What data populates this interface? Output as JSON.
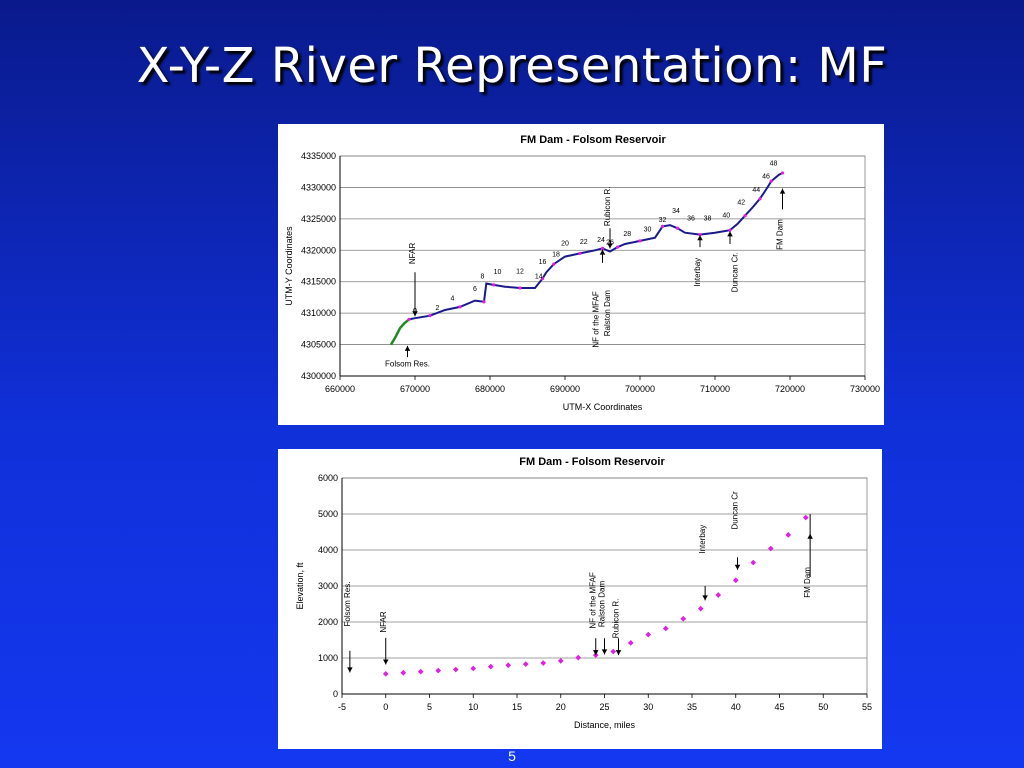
{
  "slide": {
    "title": "X-Y-Z River Representation: MF",
    "page_number": "5"
  },
  "colors": {
    "river_line": "#1a1a8c",
    "upstream_line": "#1f8a1f",
    "markers": "#e020e0"
  },
  "chart_data": [
    {
      "type": "line",
      "title": "FM Dam - Folsom Reservoir",
      "xlabel": "UTM-X Coordinates",
      "ylabel": "UTM-Y Coordinates",
      "xlim": [
        660000,
        730000
      ],
      "ylim": [
        4300000,
        4335000
      ],
      "x_ticks": [
        "660000",
        "670000",
        "680000",
        "690000",
        "700000",
        "710000",
        "720000",
        "730000"
      ],
      "y_ticks": [
        "4300000",
        "4305000",
        "4310000",
        "4315000",
        "4320000",
        "4325000",
        "4330000",
        "4335000"
      ],
      "grid": "horizontal",
      "series": [
        {
          "points": [
            [
              666800,
              4305000
            ],
            [
              667400,
              4306200
            ],
            [
              668000,
              4307600
            ],
            [
              668600,
              4308400
            ],
            [
              669200,
              4309000
            ],
            [
              670000,
              4309200
            ],
            [
              672000,
              4309600
            ],
            [
              674000,
              4310500
            ],
            [
              676000,
              4311000
            ],
            [
              678000,
              4312000
            ],
            [
              679200,
              4311800
            ],
            [
              679500,
              4314700
            ],
            [
              680500,
              4314500
            ],
            [
              682000,
              4314200
            ],
            [
              684000,
              4314000
            ],
            [
              686000,
              4314000
            ],
            [
              687000,
              4315500
            ],
            [
              687500,
              4316500
            ],
            [
              688500,
              4317800
            ],
            [
              690000,
              4319000
            ],
            [
              692000,
              4319500
            ],
            [
              694000,
              4320000
            ],
            [
              695000,
              4320300
            ],
            [
              696000,
              4319800
            ],
            [
              697000,
              4320500
            ],
            [
              698000,
              4321000
            ],
            [
              700000,
              4321500
            ],
            [
              702000,
              4322000
            ],
            [
              703000,
              4323800
            ],
            [
              704000,
              4324000
            ],
            [
              705000,
              4323500
            ],
            [
              706000,
              4322800
            ],
            [
              708000,
              4322500
            ],
            [
              710000,
              4322800
            ],
            [
              712000,
              4323200
            ],
            [
              713000,
              4324200
            ],
            [
              714000,
              4325500
            ],
            [
              715000,
              4326800
            ],
            [
              716000,
              4328200
            ],
            [
              717000,
              4330000
            ],
            [
              717500,
              4331000
            ],
            [
              718500,
              4332000
            ],
            [
              719000,
              4332300
            ]
          ]
        }
      ],
      "point_labels": [
        {
          "text": "0",
          "x": 670000,
          "y": 4310000
        },
        {
          "text": "2",
          "x": 673000,
          "y": 4310500
        },
        {
          "text": "4",
          "x": 675000,
          "y": 4312000
        },
        {
          "text": "6",
          "x": 678000,
          "y": 4313500
        },
        {
          "text": "8",
          "x": 679000,
          "y": 4315500
        },
        {
          "text": "10",
          "x": 681000,
          "y": 4316200
        },
        {
          "text": "12",
          "x": 684000,
          "y": 4316300
        },
        {
          "text": "14",
          "x": 686500,
          "y": 4315500
        },
        {
          "text": "16",
          "x": 687000,
          "y": 4317800
        },
        {
          "text": "18",
          "x": 688800,
          "y": 4319000
        },
        {
          "text": "20",
          "x": 690000,
          "y": 4320800
        },
        {
          "text": "22",
          "x": 692500,
          "y": 4321000
        },
        {
          "text": "24",
          "x": 694800,
          "y": 4321300
        },
        {
          "text": "26",
          "x": 696000,
          "y": 4320900
        },
        {
          "text": "28",
          "x": 698300,
          "y": 4322300
        },
        {
          "text": "30",
          "x": 701000,
          "y": 4323000
        },
        {
          "text": "32",
          "x": 703000,
          "y": 4324500
        },
        {
          "text": "34",
          "x": 704800,
          "y": 4325900
        },
        {
          "text": "36",
          "x": 706800,
          "y": 4324700
        },
        {
          "text": "38",
          "x": 709000,
          "y": 4324700
        },
        {
          "text": "40",
          "x": 711500,
          "y": 4325200
        },
        {
          "text": "42",
          "x": 713500,
          "y": 4327300
        },
        {
          "text": "44",
          "x": 715500,
          "y": 4329300
        },
        {
          "text": "46",
          "x": 716800,
          "y": 4331400
        },
        {
          "text": "48",
          "x": 717800,
          "y": 4333500
        }
      ],
      "annotations": [
        {
          "text": "NFAR",
          "rotated": true,
          "x": 670000,
          "y": 4319500,
          "arrow": [
            670000,
            4316500,
            670000,
            4309500
          ]
        },
        {
          "text": "Folsom Res.",
          "rotated": false,
          "x": 669000,
          "y": 4301500,
          "arrow": [
            669000,
            4303000,
            669000,
            4304800
          ]
        },
        {
          "text": "Rubicon R.",
          "rotated": true,
          "x": 696000,
          "y": 4327000,
          "arrow": [
            696000,
            4323500,
            696000,
            4320300
          ]
        },
        {
          "text": "NF of the MFAF",
          "rotated": true,
          "x": 694500,
          "y": 4309000,
          "arrow": [
            695000,
            4318000,
            695000,
            4320100
          ]
        },
        {
          "text": "Ralston Dam",
          "rotated": true,
          "x": 696000,
          "y": 4310000,
          "arrow": null
        },
        {
          "text": "Interbay",
          "rotated": true,
          "x": 708000,
          "y": 4316500,
          "arrow": [
            708000,
            4320500,
            708000,
            4322400
          ]
        },
        {
          "text": "Duncan Cr.",
          "rotated": true,
          "x": 713000,
          "y": 4316500,
          "arrow": [
            712000,
            4321000,
            712000,
            4323000
          ]
        },
        {
          "text": "FM Dam",
          "rotated": true,
          "x": 719000,
          "y": 4322500,
          "arrow": [
            719000,
            4326500,
            719000,
            4329800
          ]
        }
      ]
    },
    {
      "type": "scatter",
      "title": "FM Dam - Folsom Reservoir",
      "xlabel": "Distance, miles",
      "ylabel": "Elevation, ft",
      "xlim": [
        -5,
        55
      ],
      "ylim": [
        0,
        6000
      ],
      "x_ticks": [
        "-5",
        "0",
        "5",
        "10",
        "15",
        "20",
        "25",
        "30",
        "35",
        "40",
        "45",
        "50",
        "55"
      ],
      "y_ticks": [
        "0",
        "1000",
        "2000",
        "3000",
        "4000",
        "5000",
        "6000"
      ],
      "grid": "horizontal",
      "series": [
        {
          "x": [
            0,
            2,
            4,
            6,
            8,
            10,
            12,
            14,
            16,
            18,
            20,
            22,
            24,
            26,
            28,
            30,
            32,
            34,
            36,
            38,
            40,
            42,
            44,
            46,
            48
          ],
          "y": [
            560,
            590,
            620,
            650,
            680,
            710,
            760,
            800,
            830,
            860,
            920,
            1010,
            1080,
            1180,
            1420,
            1650,
            1820,
            2090,
            2370,
            2750,
            3160,
            3650,
            4040,
            4420,
            4900
          ]
        }
      ],
      "annotations": [
        {
          "text": "Folsom Res.",
          "x": -4.1,
          "y": 2500,
          "arrow": [
            -4.1,
            1200,
            -4.1,
            600
          ]
        },
        {
          "text": "NFAR",
          "x": 0,
          "y": 2000,
          "arrow": [
            0,
            1560,
            0,
            820
          ]
        },
        {
          "text": "NF of the MFAF",
          "x": 24.0,
          "y": 2600,
          "arrow": [
            24.0,
            1550,
            24.0,
            1080
          ]
        },
        {
          "text": "Ralston Dam",
          "x": 25.0,
          "y": 2500,
          "arrow": [
            25.0,
            1550,
            25.0,
            1100
          ]
        },
        {
          "text": "Rubicon R.",
          "x": 26.6,
          "y": 2100,
          "arrow": [
            26.6,
            1550,
            26.6,
            1080
          ]
        },
        {
          "text": "Interbay",
          "x": 36.5,
          "y": 4300,
          "arrow": [
            36.5,
            3000,
            36.5,
            2600
          ]
        },
        {
          "text": "Duncan Cr",
          "x": 40.2,
          "y": 5100,
          "arrow": [
            40.2,
            3800,
            40.2,
            3450
          ]
        },
        {
          "text": "FM Dam",
          "x": 48.5,
          "y": 3100,
          "arrow": [
            48.5,
            3250,
            48.5,
            4450
          ]
        }
      ],
      "fm_dam_marker": [
        48.5,
        5000,
        48.5,
        4750
      ]
    }
  ]
}
